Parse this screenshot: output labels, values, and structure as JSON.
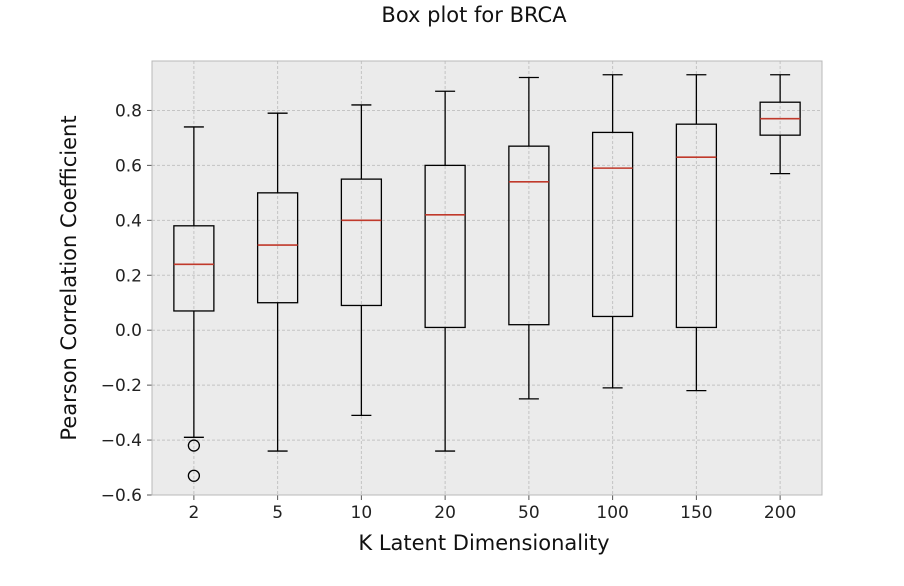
{
  "chart_data": {
    "type": "box",
    "title": "Box plot for BRCA",
    "xlabel": "K Latent Dimensionality",
    "ylabel": "Pearson Correlation Coefficient",
    "categories": [
      "2",
      "5",
      "10",
      "20",
      "50",
      "100",
      "150",
      "200"
    ],
    "boxes": [
      {
        "label": "2",
        "whisker_low": -0.39,
        "q1": 0.07,
        "median": 0.24,
        "q3": 0.38,
        "whisker_high": 0.74,
        "outliers": [
          -0.42,
          -0.53
        ]
      },
      {
        "label": "5",
        "whisker_low": -0.44,
        "q1": 0.1,
        "median": 0.31,
        "q3": 0.5,
        "whisker_high": 0.79,
        "outliers": []
      },
      {
        "label": "10",
        "whisker_low": -0.31,
        "q1": 0.09,
        "median": 0.4,
        "q3": 0.55,
        "whisker_high": 0.82,
        "outliers": []
      },
      {
        "label": "20",
        "whisker_low": -0.44,
        "q1": 0.01,
        "median": 0.42,
        "q3": 0.6,
        "whisker_high": 0.87,
        "outliers": []
      },
      {
        "label": "50",
        "whisker_low": -0.25,
        "q1": 0.02,
        "median": 0.54,
        "q3": 0.67,
        "whisker_high": 0.92,
        "outliers": []
      },
      {
        "label": "100",
        "whisker_low": -0.21,
        "q1": 0.05,
        "median": 0.59,
        "q3": 0.72,
        "whisker_high": 0.93,
        "outliers": []
      },
      {
        "label": "150",
        "whisker_low": -0.22,
        "q1": 0.01,
        "median": 0.63,
        "q3": 0.75,
        "whisker_high": 0.93,
        "outliers": []
      },
      {
        "label": "200",
        "whisker_low": 0.57,
        "q1": 0.71,
        "median": 0.77,
        "q3": 0.83,
        "whisker_high": 0.93,
        "outliers": []
      }
    ],
    "yticks": [
      -0.6,
      -0.4,
      -0.2,
      0.0,
      0.2,
      0.4,
      0.6,
      0.8
    ],
    "ytick_labels": [
      "−0.6",
      "−0.4",
      "−0.2",
      "0.0",
      "0.2",
      "0.4",
      "0.6",
      "0.8"
    ],
    "ylim": [
      -0.6,
      0.98
    ],
    "grid": true,
    "colors": {
      "plot_background": "#ebebeb",
      "grid": "#c4c4c4",
      "box_edge": "#000000",
      "median": "#c0392b"
    }
  }
}
